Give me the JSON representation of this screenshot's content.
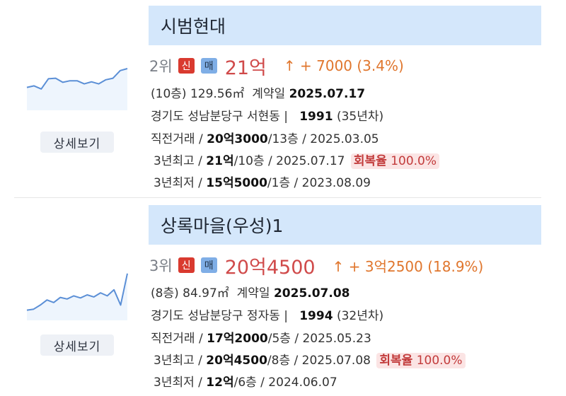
{
  "listings": [
    {
      "name": "시범현대",
      "rank": "2위",
      "badge_new": "신",
      "badge_sale": "매",
      "price": "21억",
      "change": "↑ + 7000 (3.4%)",
      "floor": "(10층)",
      "area": "129.56㎡",
      "contract_label": "계약일",
      "contract_date": "2025.07.17",
      "address": "경기도 성남분당구 서현동 |",
      "built_year": "1991",
      "age": "(35년차)",
      "prev_label": "직전거래 /",
      "prev_price": "20억3000",
      "prev_rest": "/13층 / 2025.03.05",
      "high_label": "3년최고 /",
      "high_price": "21억",
      "high_rest": "/10층 / 2025.07.17",
      "recovery_label": "회복율",
      "recovery_value": "100.0%",
      "low_label": "3년최저 /",
      "low_price": "15억5000",
      "low_rest": "/1층 / 2023.08.09",
      "detail_label": "상세보기",
      "spark": [
        0.45,
        0.48,
        0.42,
        0.62,
        0.63,
        0.55,
        0.58,
        0.58,
        0.52,
        0.56,
        0.52,
        0.6,
        0.63,
        0.78,
        0.82
      ]
    },
    {
      "name": "상록마을(우성)1",
      "rank": "3위",
      "badge_new": "신",
      "badge_sale": "매",
      "price": "20억4500",
      "change": "↑ + 3억2500 (18.9%)",
      "floor": "(8층)",
      "area": "84.97㎡",
      "contract_label": "계약일",
      "contract_date": "2025.07.08",
      "address": "경기도 성남분당구 정자동 |",
      "built_year": "1994",
      "age": "(32년차)",
      "prev_label": "직전거래 /",
      "prev_price": "17억2000",
      "prev_rest": "/5층 / 2025.05.23",
      "high_label": "3년최고 /",
      "high_price": "20억4500",
      "high_rest": "/8층 / 2025.07.08",
      "recovery_label": "회복율",
      "recovery_value": "100.0%",
      "low_label": "3년최저 /",
      "low_price": "12억",
      "low_rest": "/6층 / 2024.06.07",
      "detail_label": "상세보기",
      "spark": [
        0.2,
        0.22,
        0.3,
        0.4,
        0.35,
        0.45,
        0.42,
        0.48,
        0.44,
        0.5,
        0.46,
        0.54,
        0.48,
        0.6,
        0.3,
        0.92
      ]
    }
  ],
  "colors": {
    "title_bg": "#d4e7fb",
    "price": "#d04a4a",
    "change": "#e0762d",
    "spark_line": "#5b8fd6",
    "badge_new": "#d93a2f",
    "badge_sale": "#7faee6"
  }
}
